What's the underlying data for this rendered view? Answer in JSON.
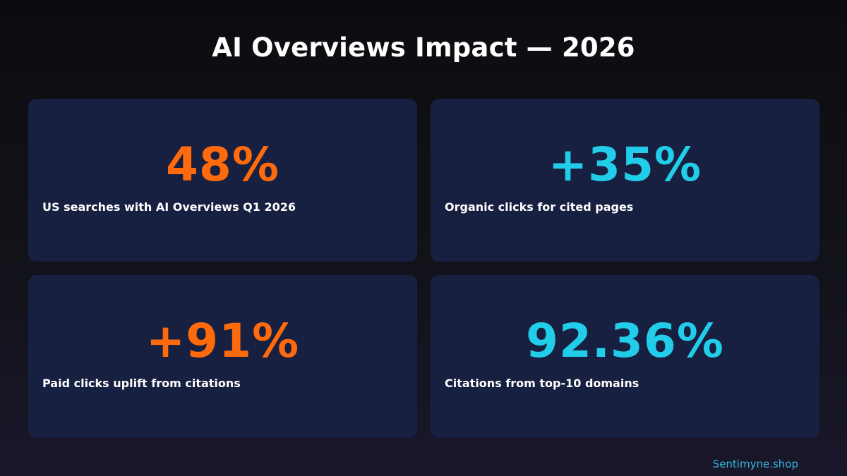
{
  "header": {
    "title": "AI Overviews Impact — 2026"
  },
  "colors": {
    "orange": "#ff6a0d",
    "cyan": "#22cde9",
    "card_bg": "#172040",
    "footer": "#35b6da"
  },
  "stats": [
    {
      "value": "48%",
      "label": "US searches with AI Overviews Q1 2026",
      "color": "#ff6a0d"
    },
    {
      "value": "+35%",
      "label": "Organic clicks for cited pages",
      "color": "#22cde9"
    },
    {
      "value": "+91%",
      "label": "Paid clicks uplift from citations",
      "color": "#ff6a0d"
    },
    {
      "value": "92.36%",
      "label": "Citations from top-10 domains",
      "color": "#22cde9"
    }
  ],
  "footer": {
    "brand": "Sentimyne.shop"
  }
}
